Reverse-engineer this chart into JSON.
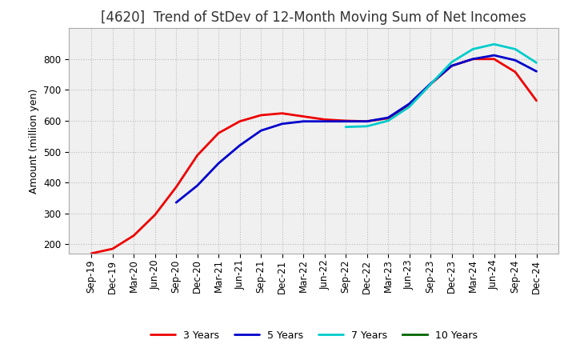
{
  "title": "[4620]  Trend of StDev of 12-Month Moving Sum of Net Incomes",
  "ylabel": "Amount (million yen)",
  "title_fontsize": 12,
  "label_fontsize": 9,
  "tick_fontsize": 8.5,
  "background_color": "#ffffff",
  "plot_bg_color": "#f0f0f0",
  "grid_color": "#bbbbbb",
  "ylim": [
    170,
    900
  ],
  "yticks": [
    200,
    300,
    400,
    500,
    600,
    700,
    800
  ],
  "series": {
    "3 Years": {
      "color": "#ee0000",
      "data": [
        170,
        185,
        228,
        295,
        385,
        488,
        560,
        598,
        618,
        624,
        614,
        604,
        600,
        598,
        608,
        648,
        718,
        778,
        800,
        800,
        758,
        665
      ]
    },
    "5 Years": {
      "color": "#0000cc",
      "data": [
        null,
        null,
        null,
        null,
        335,
        390,
        462,
        520,
        568,
        590,
        598,
        598,
        598,
        598,
        610,
        655,
        720,
        778,
        800,
        812,
        796,
        760
      ]
    },
    "7 Years": {
      "color": "#00cccc",
      "data": [
        null,
        null,
        null,
        null,
        null,
        null,
        null,
        null,
        null,
        null,
        null,
        null,
        580,
        582,
        600,
        645,
        718,
        790,
        832,
        848,
        832,
        788
      ]
    },
    "10 Years": {
      "color": "#006600",
      "data": [
        null,
        null,
        null,
        null,
        null,
        null,
        null,
        null,
        null,
        null,
        null,
        null,
        null,
        null,
        null,
        null,
        null,
        null,
        null,
        null,
        null,
        null
      ]
    }
  },
  "xtick_labels": [
    "Sep-19",
    "Dec-19",
    "Mar-20",
    "Jun-20",
    "Sep-20",
    "Dec-20",
    "Mar-21",
    "Jun-21",
    "Sep-21",
    "Dec-21",
    "Mar-22",
    "Jun-22",
    "Sep-22",
    "Dec-22",
    "Mar-23",
    "Jun-23",
    "Sep-23",
    "Dec-23",
    "Mar-24",
    "Jun-24",
    "Sep-24",
    "Dec-24"
  ]
}
